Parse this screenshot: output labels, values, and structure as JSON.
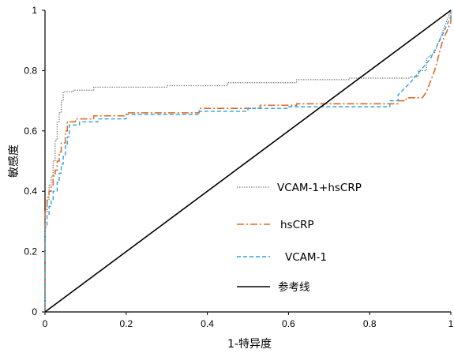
{
  "chart_data": {
    "type": "line",
    "title": "",
    "xlabel": "1-特异度",
    "ylabel": "敏感度",
    "xlim": [
      0,
      1
    ],
    "ylim": [
      0,
      1
    ],
    "xticks": [
      "0",
      "0.2",
      "0.4",
      "0.6",
      "0.8",
      "1"
    ],
    "yticks": [
      "0",
      "0.2",
      "0.4",
      "0.6",
      "0.8",
      "1"
    ],
    "grid": false,
    "legend_position": "center-right",
    "series": [
      {
        "name": "VCAM-1+hsCRP",
        "color": "#808080",
        "dash": "dotted",
        "points": [
          [
            0,
            0
          ],
          [
            0,
            0.33
          ],
          [
            0.005,
            0.33
          ],
          [
            0.005,
            0.37
          ],
          [
            0.01,
            0.37
          ],
          [
            0.01,
            0.42
          ],
          [
            0.015,
            0.42
          ],
          [
            0.015,
            0.45
          ],
          [
            0.02,
            0.45
          ],
          [
            0.02,
            0.5
          ],
          [
            0.025,
            0.5
          ],
          [
            0.025,
            0.57
          ],
          [
            0.03,
            0.57
          ],
          [
            0.03,
            0.63
          ],
          [
            0.035,
            0.63
          ],
          [
            0.035,
            0.66
          ],
          [
            0.04,
            0.66
          ],
          [
            0.04,
            0.7
          ],
          [
            0.045,
            0.7
          ],
          [
            0.045,
            0.73
          ],
          [
            0.07,
            0.73
          ],
          [
            0.07,
            0.735
          ],
          [
            0.12,
            0.735
          ],
          [
            0.12,
            0.745
          ],
          [
            0.3,
            0.745
          ],
          [
            0.3,
            0.75
          ],
          [
            0.45,
            0.75
          ],
          [
            0.45,
            0.76
          ],
          [
            0.62,
            0.76
          ],
          [
            0.62,
            0.77
          ],
          [
            0.75,
            0.77
          ],
          [
            0.75,
            0.775
          ],
          [
            0.9,
            0.775
          ],
          [
            0.9,
            0.78
          ],
          [
            0.92,
            0.78
          ],
          [
            0.92,
            0.8
          ],
          [
            0.94,
            0.8
          ],
          [
            0.94,
            0.84
          ],
          [
            0.96,
            0.86
          ],
          [
            0.98,
            0.93
          ],
          [
            1,
            1
          ]
        ]
      },
      {
        "name": "hsCRP",
        "color": "#e06a2a",
        "dash": "dashdot",
        "points": [
          [
            0,
            0
          ],
          [
            0,
            0.34
          ],
          [
            0.005,
            0.34
          ],
          [
            0.005,
            0.38
          ],
          [
            0.01,
            0.38
          ],
          [
            0.01,
            0.4
          ],
          [
            0.015,
            0.4
          ],
          [
            0.015,
            0.42
          ],
          [
            0.02,
            0.42
          ],
          [
            0.02,
            0.45
          ],
          [
            0.025,
            0.45
          ],
          [
            0.025,
            0.47
          ],
          [
            0.03,
            0.47
          ],
          [
            0.03,
            0.5
          ],
          [
            0.035,
            0.5
          ],
          [
            0.035,
            0.53
          ],
          [
            0.04,
            0.53
          ],
          [
            0.04,
            0.56
          ],
          [
            0.05,
            0.56
          ],
          [
            0.05,
            0.6
          ],
          [
            0.055,
            0.6
          ],
          [
            0.055,
            0.63
          ],
          [
            0.075,
            0.63
          ],
          [
            0.075,
            0.64
          ],
          [
            0.12,
            0.64
          ],
          [
            0.12,
            0.65
          ],
          [
            0.2,
            0.65
          ],
          [
            0.2,
            0.66
          ],
          [
            0.38,
            0.66
          ],
          [
            0.38,
            0.675
          ],
          [
            0.53,
            0.675
          ],
          [
            0.53,
            0.685
          ],
          [
            0.62,
            0.685
          ],
          [
            0.62,
            0.69
          ],
          [
            0.87,
            0.69
          ],
          [
            0.87,
            0.7
          ],
          [
            0.89,
            0.7
          ],
          [
            0.89,
            0.71
          ],
          [
            0.93,
            0.71
          ],
          [
            0.94,
            0.73
          ],
          [
            0.96,
            0.8
          ],
          [
            0.98,
            0.9
          ],
          [
            1,
            0.96
          ],
          [
            1,
            1
          ]
        ]
      },
      {
        "name": "VCAM-1",
        "color": "#29a3dc",
        "dash": "dashed",
        "points": [
          [
            0,
            0
          ],
          [
            0,
            0.28
          ],
          [
            0.005,
            0.28
          ],
          [
            0.005,
            0.32
          ],
          [
            0.01,
            0.32
          ],
          [
            0.01,
            0.35
          ],
          [
            0.015,
            0.35
          ],
          [
            0.015,
            0.37
          ],
          [
            0.02,
            0.37
          ],
          [
            0.02,
            0.4
          ],
          [
            0.03,
            0.4
          ],
          [
            0.03,
            0.43
          ],
          [
            0.035,
            0.43
          ],
          [
            0.035,
            0.46
          ],
          [
            0.04,
            0.46
          ],
          [
            0.04,
            0.49
          ],
          [
            0.045,
            0.49
          ],
          [
            0.045,
            0.52
          ],
          [
            0.05,
            0.52
          ],
          [
            0.05,
            0.55
          ],
          [
            0.055,
            0.55
          ],
          [
            0.055,
            0.58
          ],
          [
            0.06,
            0.58
          ],
          [
            0.06,
            0.62
          ],
          [
            0.085,
            0.62
          ],
          [
            0.085,
            0.63
          ],
          [
            0.13,
            0.63
          ],
          [
            0.13,
            0.64
          ],
          [
            0.2,
            0.64
          ],
          [
            0.2,
            0.655
          ],
          [
            0.38,
            0.655
          ],
          [
            0.38,
            0.665
          ],
          [
            0.5,
            0.665
          ],
          [
            0.5,
            0.675
          ],
          [
            0.6,
            0.675
          ],
          [
            0.6,
            0.68
          ],
          [
            0.85,
            0.68
          ],
          [
            0.85,
            0.7
          ],
          [
            0.87,
            0.7
          ],
          [
            0.87,
            0.72
          ],
          [
            0.9,
            0.76
          ],
          [
            0.95,
            0.84
          ],
          [
            0.98,
            0.92
          ],
          [
            1,
            0.98
          ],
          [
            1,
            1
          ]
        ]
      },
      {
        "name": "参考线",
        "color": "#000000",
        "dash": "solid",
        "points": [
          [
            0,
            0
          ],
          [
            1,
            1
          ]
        ]
      }
    ]
  }
}
